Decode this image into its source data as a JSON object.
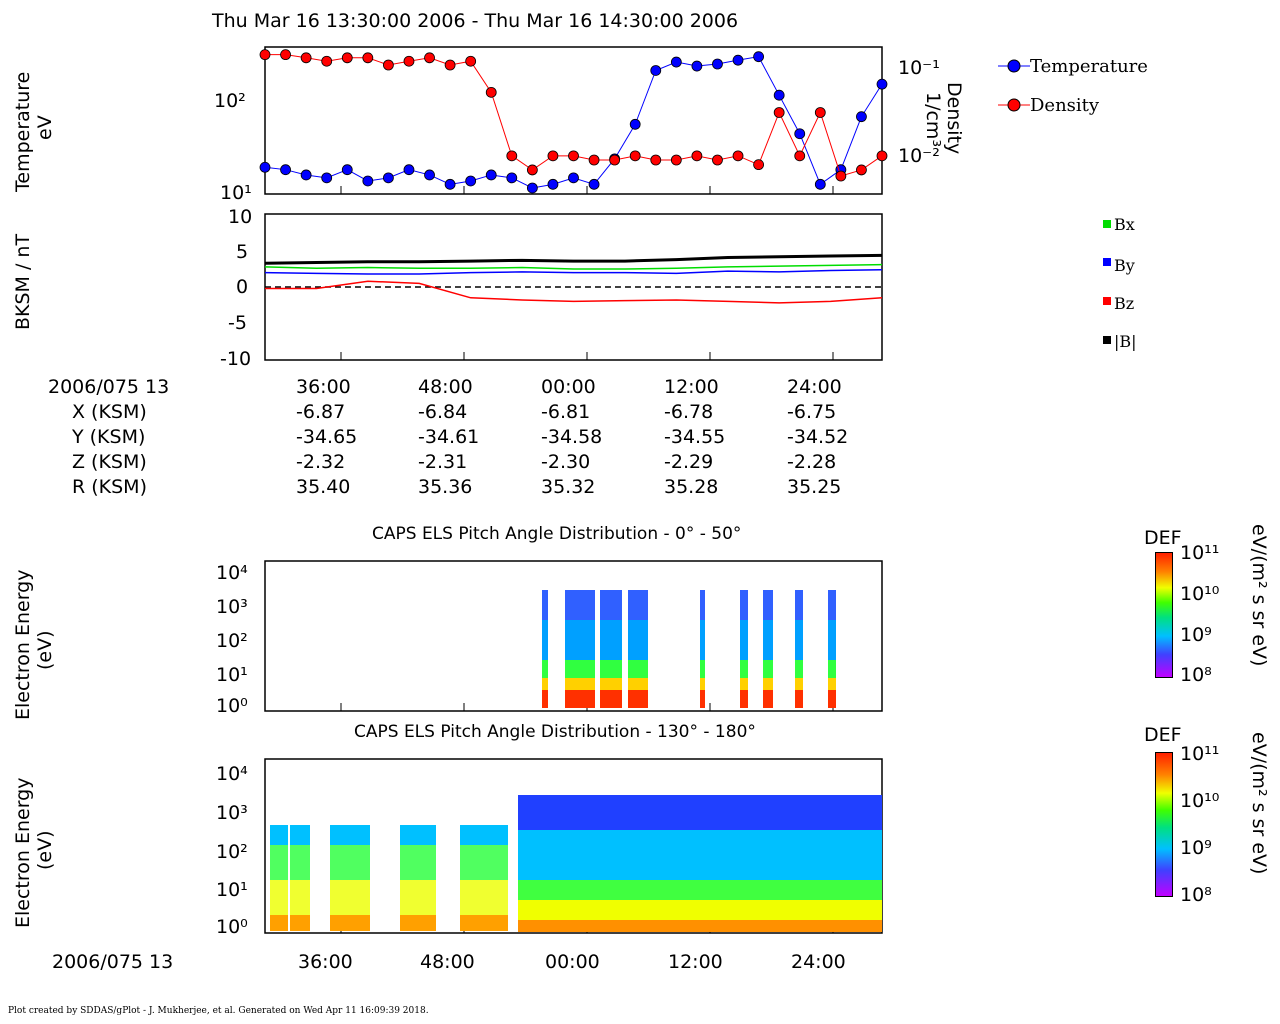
{
  "header": {
    "title": "Thu Mar 16 13:30:00 2006 - Thu Mar 16 14:30:00 2006"
  },
  "panel1": {
    "ylabel_left": [
      "Temperature",
      "eV"
    ],
    "ylabel_right": [
      "Density",
      "1/cm³"
    ],
    "ticks_left": [
      "10²",
      "10¹"
    ],
    "ticks_right": [
      "10⁻¹",
      "10⁻²"
    ],
    "legend": [
      "Temperature",
      "Density"
    ]
  },
  "panel2": {
    "ylabel": "BKSM / nT",
    "yticks": [
      "10",
      "5",
      "0",
      "-5",
      "-10"
    ],
    "legend": [
      "Bx",
      "By",
      "Bz",
      "|B|"
    ]
  },
  "ephemeris": {
    "date": "2006/075 13",
    "labels": [
      "X (KSM)",
      "Y (KSM)",
      "Z (KSM)",
      "R (KSM)"
    ],
    "times": [
      "36:00",
      "48:00",
      "00:00",
      "12:00",
      "24:00"
    ],
    "rows": [
      [
        "-6.87",
        "-6.84",
        "-6.81",
        "-6.78",
        "-6.75"
      ],
      [
        "-34.65",
        "-34.61",
        "-34.58",
        "-34.55",
        "-34.52"
      ],
      [
        "-2.32",
        "-2.31",
        "-2.30",
        "-2.29",
        "-2.28"
      ],
      [
        "35.40",
        "35.36",
        "35.32",
        "35.28",
        "35.25"
      ]
    ]
  },
  "panel3": {
    "title": "CAPS ELS Pitch Angle Distribution - 0° - 50°",
    "ylabel": [
      "Electron Energy",
      "(eV)"
    ],
    "yticks": [
      "10⁴",
      "10³",
      "10²",
      "10¹",
      "10⁰"
    ]
  },
  "panel4": {
    "title": "CAPS ELS Pitch Angle Distribution - 130° - 180°",
    "ylabel": [
      "Electron Energy",
      "(eV)"
    ],
    "yticks": [
      "10⁴",
      "10³",
      "10²",
      "10¹",
      "10⁰"
    ]
  },
  "colorbar": {
    "label": "DEF",
    "units": "eV/(m² s sr eV)",
    "ticks": [
      "10¹¹",
      "10¹⁰",
      "10⁹",
      "10⁸"
    ]
  },
  "bottom_axis": {
    "date": "2006/075 13",
    "times": [
      "36:00",
      "48:00",
      "00:00",
      "12:00",
      "24:00"
    ]
  },
  "footer": "Plot created by SDDAS/gPlot - J. Mukherjee, et al.  Generated on Wed Apr 11 16:09:39 2018.",
  "colors": {
    "temperature": "#0000ff",
    "density": "#ff0000",
    "bx": "#00dd00",
    "by": "#0000ff",
    "bz": "#ff0000",
    "b": "#000000"
  },
  "chart_data": [
    {
      "type": "scatter",
      "title": "Thu Mar 16 13:30:00 2006 - Thu Mar 16 14:30:00 2006",
      "x_unit": "minutes after 13:30",
      "xlim": [
        0,
        60
      ],
      "series": [
        {
          "name": "Temperature",
          "axis": "left",
          "ylim": [
            10,
            300
          ],
          "scale": "log",
          "x": [
            0,
            2,
            4,
            6,
            8,
            10,
            12,
            14,
            16,
            18,
            20,
            22,
            24,
            26,
            28,
            30,
            32,
            34,
            36,
            38,
            40,
            42,
            44,
            46,
            48,
            50,
            52,
            54,
            56,
            58,
            60
          ],
          "y": [
            18,
            17,
            15,
            14,
            17,
            13,
            14,
            17,
            15,
            12,
            13,
            15,
            14,
            11,
            12,
            14,
            12,
            22,
            50,
            180,
            220,
            200,
            210,
            230,
            250,
            100,
            40,
            12,
            17,
            60,
            130
          ]
        },
        {
          "name": "Density",
          "axis": "right",
          "ylim": [
            0.004,
            0.15
          ],
          "scale": "log",
          "x": [
            0,
            2,
            4,
            6,
            8,
            10,
            12,
            14,
            16,
            18,
            20,
            22,
            24,
            26,
            28,
            30,
            32,
            34,
            36,
            38,
            40,
            42,
            44,
            46,
            48,
            50,
            52,
            54,
            56,
            58,
            60
          ],
          "y": [
            0.13,
            0.13,
            0.12,
            0.11,
            0.12,
            0.12,
            0.1,
            0.11,
            0.12,
            0.1,
            0.11,
            0.05,
            0.01,
            0.007,
            0.01,
            0.01,
            0.009,
            0.009,
            0.01,
            0.009,
            0.009,
            0.01,
            0.009,
            0.01,
            0.008,
            0.03,
            0.01,
            0.03,
            0.006,
            0.007,
            0.01
          ]
        }
      ]
    },
    {
      "type": "line",
      "ylabel": "BKSM / nT",
      "ylim": [
        -10,
        10
      ],
      "x_unit": "minutes after 13:30",
      "xlim": [
        0,
        60
      ],
      "series": [
        {
          "name": "Bx",
          "x": [
            0,
            5,
            10,
            15,
            20,
            25,
            30,
            35,
            40,
            45,
            50,
            55,
            60
          ],
          "y": [
            2.8,
            2.6,
            2.7,
            2.6,
            2.6,
            2.7,
            2.5,
            2.5,
            2.6,
            2.8,
            2.9,
            3.0,
            3.1
          ]
        },
        {
          "name": "By",
          "x": [
            0,
            5,
            10,
            15,
            20,
            25,
            30,
            35,
            40,
            45,
            50,
            55,
            60
          ],
          "y": [
            2.0,
            1.9,
            1.8,
            1.8,
            2.0,
            2.1,
            2.0,
            2.0,
            1.9,
            2.2,
            2.1,
            2.3,
            2.4
          ]
        },
        {
          "name": "Bz",
          "x": [
            0,
            5,
            10,
            15,
            20,
            25,
            30,
            35,
            40,
            45,
            50,
            55,
            60
          ],
          "y": [
            -0.2,
            -0.2,
            0.8,
            0.5,
            -1.5,
            -1.8,
            -2.0,
            -1.9,
            -1.8,
            -2.0,
            -2.2,
            -2.0,
            -1.5
          ]
        },
        {
          "name": "|B|",
          "x": [
            0,
            5,
            10,
            15,
            20,
            25,
            30,
            35,
            40,
            45,
            50,
            55,
            60
          ],
          "y": [
            3.3,
            3.4,
            3.5,
            3.5,
            3.6,
            3.7,
            3.6,
            3.6,
            3.8,
            4.1,
            4.2,
            4.3,
            4.4
          ]
        }
      ]
    }
  ]
}
